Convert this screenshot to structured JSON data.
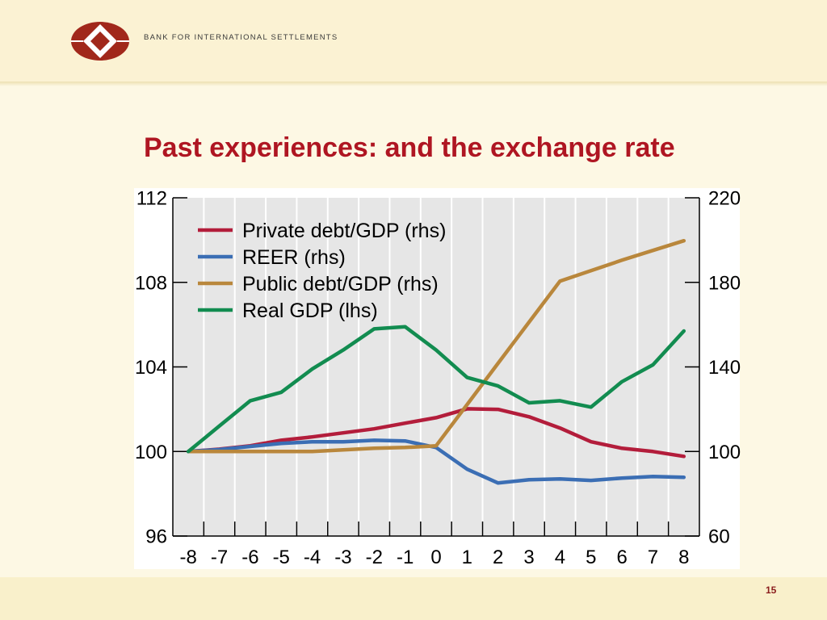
{
  "header": {
    "org_name": "BANK FOR INTERNATIONAL SETTLEMENTS",
    "logo_icon": "bis-logo-icon"
  },
  "slide": {
    "title": "Past experiences: and the exchange rate",
    "page_number": "15"
  },
  "colors": {
    "title": "#af1622",
    "logo": "#a1281b",
    "page_number": "#8a1c1c",
    "plot_background": "#e6e6e6"
  },
  "chart_data": {
    "type": "line",
    "x": [
      -8,
      -7,
      -6,
      -5,
      -4,
      -3,
      -2,
      -1,
      0,
      1,
      2,
      3,
      4,
      5,
      6,
      7,
      8
    ],
    "y_left": {
      "ylim": [
        96,
        112
      ],
      "ticks": [
        112,
        108,
        104,
        100,
        96
      ]
    },
    "y_right": {
      "ylim": [
        60,
        220
      ],
      "ticks": [
        220,
        180,
        140,
        100,
        60
      ]
    },
    "legend": "top-left",
    "grid": {
      "vertical": true,
      "horizontal": false
    },
    "series": [
      {
        "name": "Private debt/GDP (rhs)",
        "right_axis": true,
        "color": "#b31d3b",
        "values": [
          100,
          101.1,
          102.7,
          105.3,
          106.9,
          108.8,
          110.7,
          113.4,
          116.0,
          120.2,
          119.9,
          116.4,
          111.1,
          104.6,
          101.5,
          100.0,
          97.7
        ]
      },
      {
        "name": "REER (rhs)",
        "right_axis": true,
        "color": "#3b6eb4",
        "values": [
          100,
          100.9,
          102.4,
          103.8,
          104.6,
          104.6,
          105.3,
          105.0,
          101.9,
          91.6,
          85.1,
          86.6,
          87.0,
          86.3,
          87.4,
          88.2,
          87.8
        ]
      },
      {
        "name": "Public debt/GDP (rhs)",
        "right_axis": true,
        "color": "#b9873c",
        "values": [
          100,
          100,
          100,
          100,
          100,
          100.8,
          101.5,
          101.9,
          102.7,
          122.2,
          141.7,
          161.2,
          180.6,
          185.5,
          190.5,
          195.1,
          199.7
        ]
      },
      {
        "name": "Real GDP (lhs)",
        "right_axis": false,
        "color": "#128c50",
        "values": [
          100,
          101.2,
          102.4,
          102.8,
          103.9,
          104.8,
          105.8,
          105.9,
          104.8,
          103.5,
          103.1,
          102.3,
          102.4,
          102.1,
          103.3,
          104.1,
          105.7
        ]
      }
    ]
  }
}
